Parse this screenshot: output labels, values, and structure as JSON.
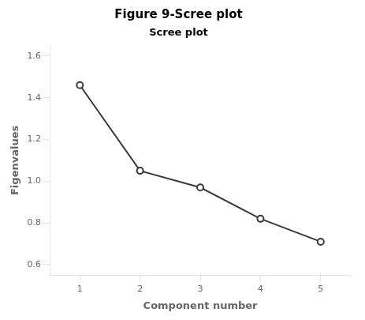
{
  "chart_data": {
    "type": "line",
    "title": "Figure 9-Scree plot",
    "subtitle": "Scree plot",
    "x_label": "Component number",
    "y_label": "Figenvalues",
    "x": [
      1,
      2,
      3,
      4,
      5
    ],
    "values": [
      1.46,
      1.05,
      0.97,
      0.82,
      0.71
    ],
    "color": "#3a3a3a",
    "marker": "o",
    "xlim": [
      0.5,
      5.5
    ],
    "ylim": [
      0.55,
      1.65
    ],
    "xticks": [
      1,
      2,
      3,
      4,
      5
    ],
    "yticks": [
      0.6,
      0.8,
      {
        "value": 1.0,
        "label": "1.0"
      },
      1.2,
      1.4,
      1.6
    ],
    "grid": false
  }
}
